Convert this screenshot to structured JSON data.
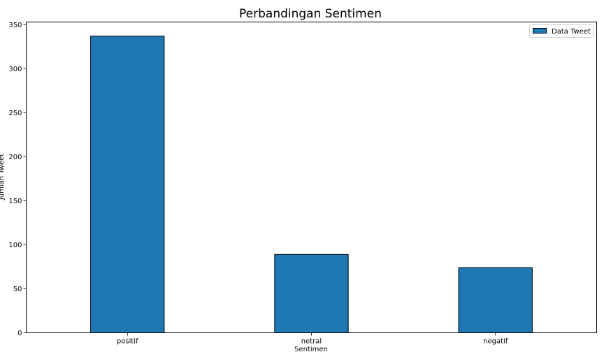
{
  "chart_data": {
    "type": "bar",
    "title": "Perbandingan Sentimen",
    "xlabel": "Sentimen",
    "ylabel": "Jumlah Tweet",
    "categories": [
      "positif",
      "netral",
      "negatif"
    ],
    "series": [
      {
        "name": "Data Tweet",
        "values": [
          337,
          89,
          74
        ]
      }
    ],
    "ylim": [
      0,
      353
    ],
    "yticks": [
      0,
      50,
      100,
      150,
      200,
      250,
      300,
      350
    ],
    "grid": false,
    "legend": "top-right",
    "bar_color": "#1f77b4",
    "edge_color": "#000000"
  }
}
